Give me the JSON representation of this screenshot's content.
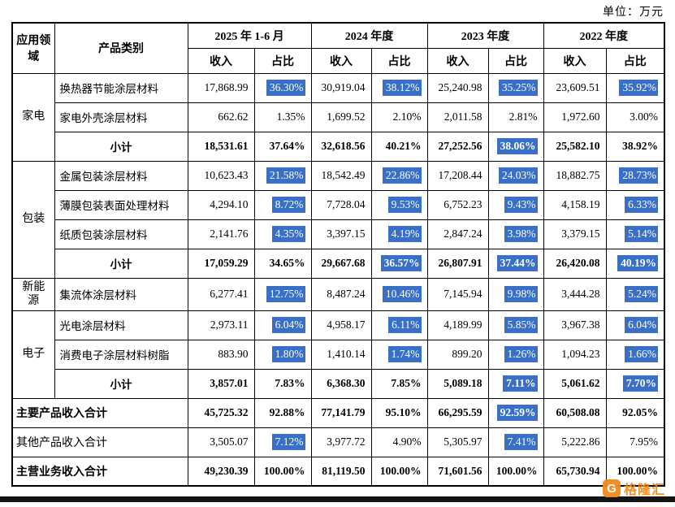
{
  "unit_label": "单位：万元",
  "colors": {
    "highlight_bg": "#3b6fc4",
    "highlight_text": "#ffffff",
    "watermark_orange": "#f28a1c",
    "border": "#000000"
  },
  "header": {
    "application_field": "应用领域",
    "product_category": "产品类别",
    "income": "收入",
    "share": "占比",
    "periods": [
      "2025 年 1-6 月",
      "2024 年度",
      "2023 年度",
      "2022 年度"
    ]
  },
  "rows": [
    {
      "type": "product",
      "group": "家电",
      "group_span": 3,
      "label": "换热器节能涂层材料",
      "bold": false,
      "values": [
        "17,868.99",
        "36.30%",
        "30,919.04",
        "38.12%",
        "25,240.98",
        "35.25%",
        "23,609.51",
        "35.92%"
      ],
      "hl": [
        0,
        1,
        0,
        1,
        0,
        1,
        0,
        1
      ]
    },
    {
      "type": "product",
      "label": "家电外壳涂层材料",
      "bold": false,
      "values": [
        "662.62",
        "1.35%",
        "1,699.52",
        "2.10%",
        "2,011.58",
        "2.81%",
        "1,972.60",
        "3.00%"
      ],
      "hl": [
        0,
        0,
        0,
        0,
        0,
        0,
        0,
        0
      ]
    },
    {
      "type": "subtotal",
      "label": "小计",
      "bold": true,
      "values": [
        "18,531.61",
        "37.64%",
        "32,618.56",
        "40.21%",
        "27,252.56",
        "38.06%",
        "25,582.10",
        "38.92%"
      ],
      "hl": [
        0,
        0,
        0,
        0,
        0,
        1,
        0,
        0
      ]
    },
    {
      "type": "product",
      "group": "包装",
      "group_span": 4,
      "label": "金属包装涂层材料",
      "bold": false,
      "values": [
        "10,623.43",
        "21.58%",
        "18,542.49",
        "22.86%",
        "17,208.44",
        "24.03%",
        "18,882.75",
        "28.73%"
      ],
      "hl": [
        0,
        1,
        0,
        1,
        0,
        1,
        0,
        1
      ]
    },
    {
      "type": "product",
      "label": "薄膜包装表面处理材料",
      "bold": false,
      "values": [
        "4,294.10",
        "8.72%",
        "7,728.04",
        "9.53%",
        "6,752.23",
        "9.43%",
        "4,158.19",
        "6.33%"
      ],
      "hl": [
        0,
        1,
        0,
        1,
        0,
        1,
        0,
        1
      ]
    },
    {
      "type": "product",
      "label": "纸质包装涂层材料",
      "bold": false,
      "values": [
        "2,141.76",
        "4.35%",
        "3,397.15",
        "4.19%",
        "2,847.24",
        "3.98%",
        "3,379.15",
        "5.14%"
      ],
      "hl": [
        0,
        1,
        0,
        1,
        0,
        1,
        0,
        1
      ]
    },
    {
      "type": "subtotal",
      "label": "小计",
      "bold": true,
      "values": [
        "17,059.29",
        "34.65%",
        "29,667.68",
        "36.57%",
        "26,807.91",
        "37.44%",
        "26,420.08",
        "40.19%"
      ],
      "hl": [
        0,
        0,
        0,
        1,
        0,
        1,
        0,
        1
      ]
    },
    {
      "type": "product",
      "group": "新能源",
      "group_span": 1,
      "label": "集流体涂层材料",
      "bold": false,
      "values": [
        "6,277.41",
        "12.75%",
        "8,487.24",
        "10.46%",
        "7,145.94",
        "9.98%",
        "3,444.28",
        "5.24%"
      ],
      "hl": [
        0,
        1,
        0,
        1,
        0,
        1,
        0,
        1
      ]
    },
    {
      "type": "product",
      "group": "电子",
      "group_span": 3,
      "label": "光电涂层材料",
      "bold": false,
      "values": [
        "2,973.11",
        "6.04%",
        "4,958.17",
        "6.11%",
        "4,189.99",
        "5.85%",
        "3,967.38",
        "6.04%"
      ],
      "hl": [
        0,
        1,
        0,
        1,
        0,
        1,
        0,
        1
      ]
    },
    {
      "type": "product",
      "label": "消费电子涂层材料树脂",
      "bold": false,
      "values": [
        "883.90",
        "1.80%",
        "1,410.14",
        "1.74%",
        "899.20",
        "1.26%",
        "1,094.23",
        "1.66%"
      ],
      "hl": [
        0,
        1,
        0,
        1,
        0,
        1,
        0,
        1
      ]
    },
    {
      "type": "subtotal",
      "label": "小计",
      "bold": true,
      "values": [
        "3,857.01",
        "7.83%",
        "6,368.30",
        "7.85%",
        "5,089.18",
        "7.11%",
        "5,061.62",
        "7.70%"
      ],
      "hl": [
        0,
        0,
        0,
        0,
        0,
        1,
        0,
        1
      ]
    },
    {
      "type": "total",
      "label": "主要产品收入合计",
      "bold": true,
      "values": [
        "45,725.32",
        "92.88%",
        "77,141.79",
        "95.10%",
        "66,295.59",
        "92.59%",
        "60,508.08",
        "92.05%"
      ],
      "hl": [
        0,
        0,
        0,
        0,
        0,
        1,
        0,
        0
      ]
    },
    {
      "type": "total",
      "label": "其他产品收入合计",
      "bold": false,
      "values": [
        "3,505.07",
        "7.12%",
        "3,977.72",
        "4.90%",
        "5,305.97",
        "7.41%",
        "5,222.86",
        "7.95%"
      ],
      "hl": [
        0,
        1,
        0,
        0,
        0,
        1,
        0,
        0
      ]
    },
    {
      "type": "total",
      "label": "主营业务收入合计",
      "bold": true,
      "values": [
        "49,230.39",
        "100.00%",
        "81,119.50",
        "100.00%",
        "71,601.56",
        "100.00%",
        "65,730.94",
        "100.00%"
      ],
      "hl": [
        0,
        0,
        0,
        0,
        0,
        0,
        0,
        0
      ]
    }
  ],
  "watermark": {
    "icon": "gelonghui-logo",
    "icon_glyph": "G",
    "text": "格隆汇"
  }
}
